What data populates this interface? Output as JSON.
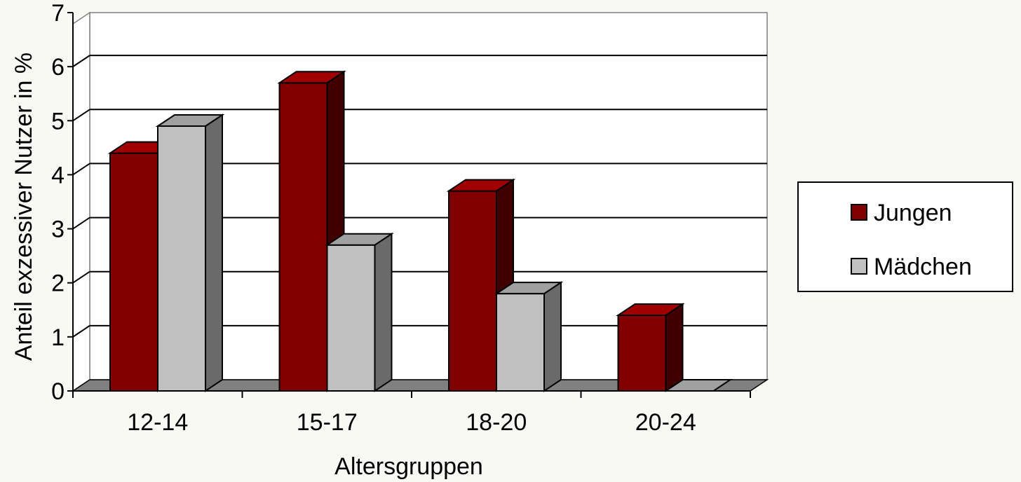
{
  "chart_data": {
    "type": "bar",
    "categories": [
      "12-14",
      "15-17",
      "18-20",
      "20-24"
    ],
    "series": [
      {
        "name": "Jungen",
        "values": [
          4.4,
          5.7,
          3.7,
          1.4
        ]
      },
      {
        "name": "Mädchen",
        "values": [
          4.9,
          2.7,
          1.8,
          0
        ]
      }
    ],
    "title": "",
    "xlabel": "Altersgruppen",
    "ylabel": "Anteil exzessiver Nutzer in %",
    "ylim": [
      0,
      7
    ],
    "yticks": [
      "0",
      "1",
      "2",
      "3",
      "4",
      "5",
      "6",
      "7"
    ],
    "grid": true,
    "legend_position": "right",
    "three_d": true
  },
  "colors": {
    "background": "#f9f9f4",
    "plot_back": "#ffffff",
    "floor": "#808080",
    "jungen_front": "#800000",
    "jungen_top": "#a00000",
    "jungen_side": "#400000",
    "maedchen_front": "#c0c0c0",
    "maedchen_top": "#a0a0a0",
    "maedchen_side": "#6a6a6a"
  }
}
